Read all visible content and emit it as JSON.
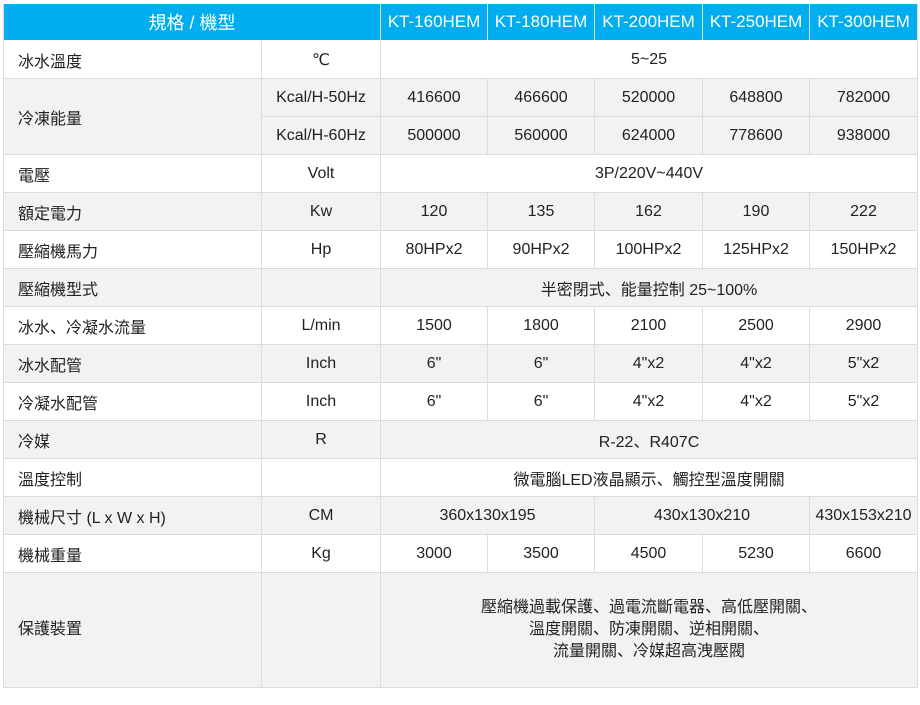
{
  "header": {
    "title": "規格 / 機型",
    "models": [
      "KT-160HEM",
      "KT-180HEM",
      "KT-200HEM",
      "KT-250HEM",
      "KT-300HEM"
    ],
    "color": "#00AEEF"
  },
  "rows": {
    "chilled_temp": {
      "label": "冰水溫度",
      "unit": "℃",
      "value": "5~25"
    },
    "capacity": {
      "label": "冷凍能量",
      "unit50": "Kcal/H-50Hz",
      "values50": [
        "416600",
        "466600",
        "520000",
        "648800",
        "782000"
      ],
      "unit60": "Kcal/H-60Hz",
      "values60": [
        "500000",
        "560000",
        "624000",
        "778600",
        "938000"
      ]
    },
    "voltage": {
      "label": "電壓",
      "unit": "Volt",
      "value": "3P/220V~440V"
    },
    "power": {
      "label": "額定電力",
      "unit": "Kw",
      "values": [
        "120",
        "135",
        "162",
        "190",
        "222"
      ]
    },
    "hp": {
      "label": "壓縮機馬力",
      "unit": "Hp",
      "values": [
        "80HPx2",
        "90HPx2",
        "100HPx2",
        "125HPx2",
        "150HPx2"
      ]
    },
    "comp_type": {
      "label": "壓縮機型式",
      "unit": "",
      "value": "半密閉式、能量控制 25~100%"
    },
    "flow": {
      "label": "冰水、冷凝水流量",
      "unit": "L/min",
      "values": [
        "1500",
        "1800",
        "2100",
        "2500",
        "2900"
      ]
    },
    "chilled_pipe": {
      "label": "冰水配管",
      "unit": "Inch",
      "values": [
        "6\"",
        "6\"",
        "4\"x2",
        "4\"x2",
        "5\"x2"
      ]
    },
    "cond_pipe": {
      "label": "冷凝水配管",
      "unit": "Inch",
      "values": [
        "6\"",
        "6\"",
        "4\"x2",
        "4\"x2",
        "5\"x2"
      ]
    },
    "refrigerant": {
      "label": "冷媒",
      "unit": "R",
      "value": "R-22、R407C"
    },
    "temp_ctrl": {
      "label": "溫度控制",
      "unit": "",
      "value": "微電腦LED液晶顯示、觸控型溫度開關"
    },
    "size": {
      "label": "機械尺寸 (L x W x H)",
      "unit": "CM",
      "values": [
        "360x130x195",
        "430x130x210",
        "430x153x210"
      ]
    },
    "weight": {
      "label": "機械重量",
      "unit": "Kg",
      "values": [
        "3000",
        "3500",
        "4500",
        "5230",
        "6600"
      ]
    },
    "protection": {
      "label": "保護裝置",
      "unit": "",
      "lines": [
        "壓縮機過載保護、過電流斷電器、高低壓開關、",
        "溫度開關、防凍開關、逆相開關、",
        "流量開關、冷媒超高洩壓閥"
      ]
    }
  }
}
